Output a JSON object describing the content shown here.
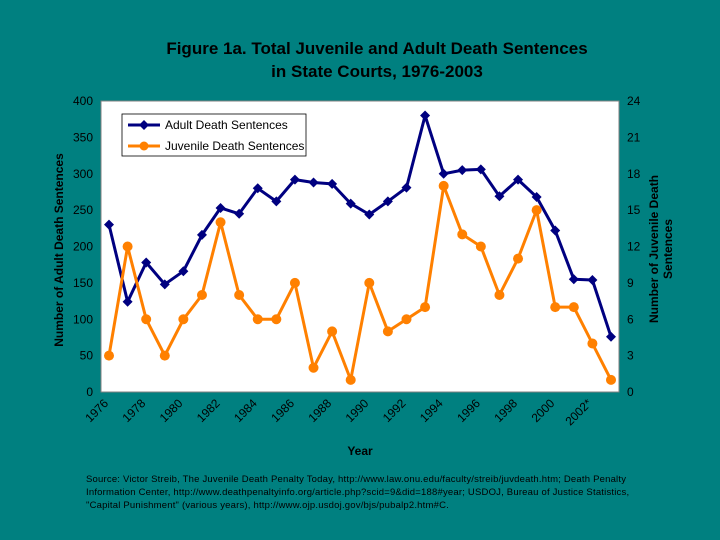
{
  "chart_data": {
    "type": "line",
    "title_line1": "Figure 1a.  Total Juvenile and Adult Death Sentences",
    "title_line2": "in State Courts, 1976-2003",
    "xlabel": "Year",
    "ylabel_left": "Number of Adult Death Sentences",
    "ylabel_right_line1": "Number of Juvenile Death",
    "ylabel_right_line2": "Sentences",
    "x": [
      1976,
      1977,
      1978,
      1979,
      1980,
      1981,
      1982,
      1983,
      1984,
      1985,
      1986,
      1987,
      1988,
      1989,
      1990,
      1991,
      1992,
      1993,
      1994,
      1995,
      1996,
      1997,
      1998,
      1999,
      2000,
      2001,
      2002,
      2003
    ],
    "x_tick_labels": [
      "1976",
      "1978",
      "1980",
      "1982",
      "1984",
      "1986",
      "1988",
      "1990",
      "1992",
      "1994",
      "1996",
      "1998",
      "2000",
      "2002*"
    ],
    "x_tick_years": [
      1976,
      1978,
      1980,
      1982,
      1984,
      1986,
      1988,
      1990,
      1992,
      1994,
      1996,
      1998,
      2000,
      2002
    ],
    "ylim_left": [
      0,
      400
    ],
    "yticks_left": [
      "0",
      "50",
      "100",
      "150",
      "200",
      "250",
      "300",
      "350",
      "400"
    ],
    "ylim_right": [
      0,
      24
    ],
    "yticks_right": [
      "0",
      "3",
      "6",
      "9",
      "12",
      "15",
      "18",
      "21",
      "24"
    ],
    "grid": false,
    "legend_position": "top-left",
    "series": [
      {
        "name": "Adult Death Sentences",
        "axis": "left",
        "color": "#000080",
        "marker": "diamond",
        "values": [
          230,
          124,
          178,
          148,
          166,
          216,
          253,
          245,
          280,
          262,
          292,
          288,
          286,
          259,
          244,
          262,
          281,
          380,
          300,
          305,
          306,
          269,
          292,
          268,
          222,
          155,
          154,
          76
        ]
      },
      {
        "name": "Juvenile Death Sentences",
        "axis": "right",
        "color": "#FF8000",
        "marker": "circle",
        "values": [
          3,
          12,
          6,
          3,
          6,
          8,
          14,
          8,
          6,
          6,
          9,
          2,
          5,
          1,
          9,
          5,
          6,
          7,
          17,
          13,
          12,
          8,
          11,
          15,
          7,
          7,
          4,
          1
        ]
      }
    ]
  },
  "source_text": "Source:  Victor Streib, The Juvenile Death Penalty Today, http://www.law.onu.edu/faculty/streib/juvdeath.htm; Death Penalty Information Center,  http://www.deathpenaltyinfo.org/article.php?scid=9&did=188#year; USDOJ, Bureau of Justice Statistics, \"Capital Punishment\" (various years), http://www.ojp.usdoj.gov/bjs/pubalp2.htm#C."
}
